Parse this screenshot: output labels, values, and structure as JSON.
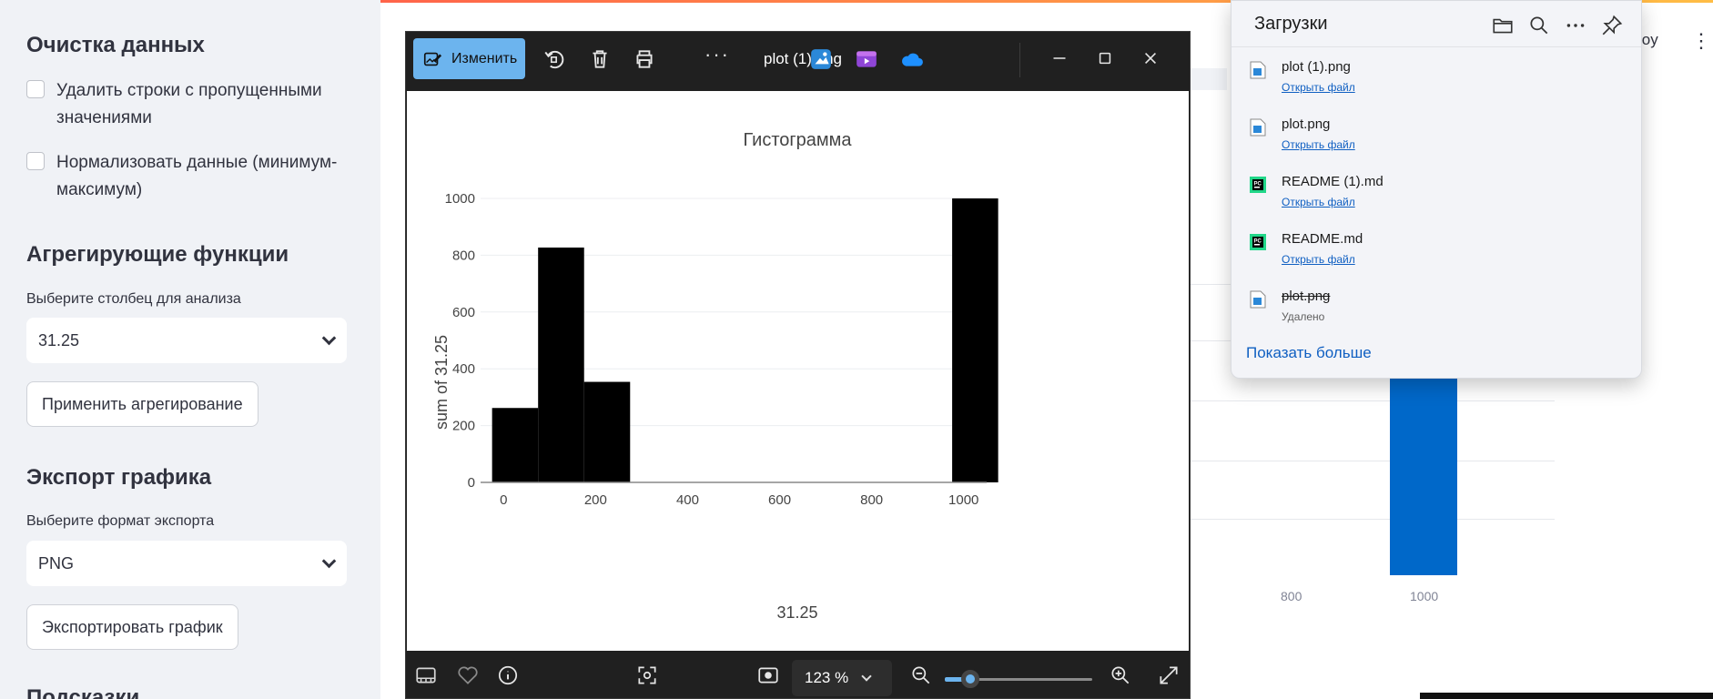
{
  "sidebar": {
    "cleaning_heading": "Очистка данных",
    "checkbox_drop_na": "Удалить строки с пропущенными значениями",
    "checkbox_normalize": "Нормализовать данные (минимум-максимум)",
    "agg_heading": "Агрегирующие функции",
    "column_label": "Выберите столбец для анализа",
    "column_value": "31.25",
    "apply_button": "Применить агрегирование",
    "export_heading": "Экспорт графика",
    "format_label": "Выберите формат экспорта",
    "format_value": "PNG",
    "export_button": "Экспортировать график",
    "hints_heading": "Подсказки"
  },
  "background_app": {
    "deploy_text": "loy",
    "menu_glyph": "⋮",
    "ticks": [
      "800",
      "1000"
    ],
    "bar_color": "#0068c9"
  },
  "photos": {
    "edit_label": "Изменить",
    "file_name": "plot (1).png",
    "more_glyph": "···",
    "zoom": "123 %",
    "zoom_level_fraction": 0.17,
    "accent": "#6cb4ee"
  },
  "chart_data": {
    "type": "bar",
    "title": "Гистограмма",
    "xlabel": "31.25",
    "ylabel": "sum of 31.25",
    "x_ticks": [
      "0",
      "200",
      "400",
      "600",
      "800",
      "1000"
    ],
    "y_ticks": [
      "0",
      "200",
      "400",
      "600",
      "800",
      "1000"
    ],
    "xlim": [
      -50,
      1050
    ],
    "ylim": [
      0,
      1000
    ],
    "bins": [
      {
        "x0": -25,
        "x1": 75,
        "value": 262
      },
      {
        "x0": 75,
        "x1": 175,
        "value": 827
      },
      {
        "x0": 175,
        "x1": 275,
        "value": 354
      },
      {
        "x0": 275,
        "x1": 375,
        "value": 0
      },
      {
        "x0": 375,
        "x1": 475,
        "value": 0
      },
      {
        "x0": 475,
        "x1": 575,
        "value": 0
      },
      {
        "x0": 575,
        "x1": 675,
        "value": 0
      },
      {
        "x0": 675,
        "x1": 775,
        "value": 0
      },
      {
        "x0": 775,
        "x1": 875,
        "value": 0
      },
      {
        "x0": 875,
        "x1": 975,
        "value": 0
      },
      {
        "x0": 975,
        "x1": 1075,
        "value": 1000
      }
    ],
    "bar_color": "#000000",
    "grid": true
  },
  "downloads": {
    "title": "Загрузки",
    "show_more": "Показать больше",
    "items": [
      {
        "name": "plot (1).png",
        "sub": "Открыть файл",
        "icon": "image-file-icon"
      },
      {
        "name": "plot.png",
        "sub": "Открыть файл",
        "icon": "image-file-icon"
      },
      {
        "name": "README (1).md",
        "sub": "Открыть файл",
        "icon": "pycharm-file-icon"
      },
      {
        "name": "README.md",
        "sub": "Открыть файл",
        "icon": "pycharm-file-icon"
      },
      {
        "name": "plot.png",
        "sub": "Удалено",
        "icon": "image-file-icon",
        "deleted": true
      }
    ]
  }
}
